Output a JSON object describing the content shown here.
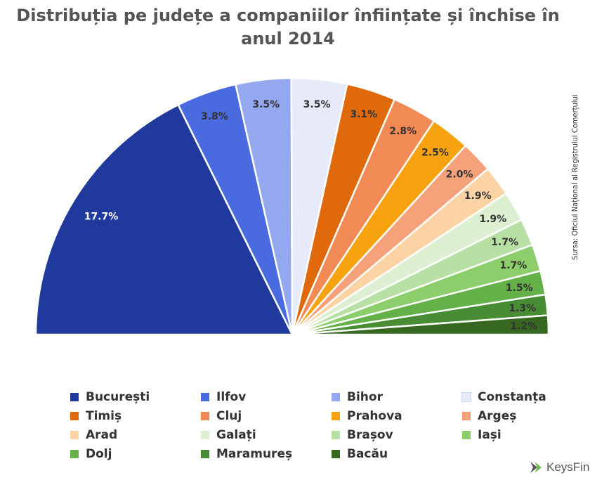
{
  "chart_data": {
    "type": "pie",
    "title": "Distribuția pe județe a companiilor înființate și închise în anul 2014",
    "source": "Sursa: Oficiul Național al Registrului Comerțului",
    "slices": [
      {
        "name": "București",
        "value": 17.7,
        "label": "17.7%",
        "color": "#1f3a9c"
      },
      {
        "name": "Ilfov",
        "value": 3.8,
        "label": "3.8%",
        "color": "#4a6ae0"
      },
      {
        "name": "Bihor",
        "value": 3.5,
        "label": "3.5%",
        "color": "#93a8ef"
      },
      {
        "name": "Constanța",
        "value": 3.5,
        "label": "3.5%",
        "color": "#e6eaf9"
      },
      {
        "name": "Timiș",
        "value": 3.1,
        "label": "3.1%",
        "color": "#e06a0b"
      },
      {
        "name": "Cluj",
        "value": 2.8,
        "label": "2.8%",
        "color": "#f28a56"
      },
      {
        "name": "Prahova",
        "value": 2.5,
        "label": "2.5%",
        "color": "#f7a30f"
      },
      {
        "name": "Argeș",
        "value": 2.0,
        "label": "2.0%",
        "color": "#f5a17a"
      },
      {
        "name": "Arad",
        "value": 1.9,
        "label": "1.9%",
        "color": "#fbd3a4"
      },
      {
        "name": "Galați",
        "value": 1.9,
        "label": "1.9%",
        "color": "#dcefd0"
      },
      {
        "name": "Brașov",
        "value": 1.7,
        "label": "1.7%",
        "color": "#b8e0a4"
      },
      {
        "name": "Iași",
        "value": 1.7,
        "label": "1.7%",
        "color": "#8cce6c"
      },
      {
        "name": "Dolj",
        "value": 1.5,
        "label": "1.5%",
        "color": "#63b148"
      },
      {
        "name": "Maramureș",
        "value": 1.3,
        "label": "1.3%",
        "color": "#488d33"
      },
      {
        "name": "Bacău",
        "value": 1.2,
        "label": "1.2%",
        "color": "#36691f"
      }
    ]
  },
  "brand": {
    "name": "KeysFin",
    "color": "#6dbe45"
  }
}
